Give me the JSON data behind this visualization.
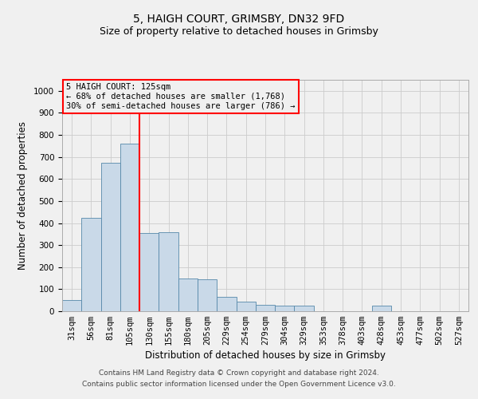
{
  "title1": "5, HAIGH COURT, GRIMSBY, DN32 9FD",
  "title2": "Size of property relative to detached houses in Grimsby",
  "xlabel": "Distribution of detached houses by size in Grimsby",
  "ylabel": "Number of detached properties",
  "footer1": "Contains HM Land Registry data © Crown copyright and database right 2024.",
  "footer2": "Contains public sector information licensed under the Open Government Licence v3.0.",
  "categories": [
    "31sqm",
    "56sqm",
    "81sqm",
    "105sqm",
    "130sqm",
    "155sqm",
    "180sqm",
    "205sqm",
    "229sqm",
    "254sqm",
    "279sqm",
    "304sqm",
    "329sqm",
    "353sqm",
    "378sqm",
    "403sqm",
    "428sqm",
    "453sqm",
    "477sqm",
    "502sqm",
    "527sqm"
  ],
  "values": [
    50,
    425,
    675,
    760,
    355,
    360,
    150,
    145,
    65,
    45,
    30,
    25,
    25,
    0,
    0,
    0,
    25,
    0,
    0,
    0,
    0
  ],
  "bar_color": "#c9d9e8",
  "bar_edge_color": "#5588aa",
  "red_line_index": 4,
  "annotation_text": "5 HAIGH COURT: 125sqm\n← 68% of detached houses are smaller (1,768)\n30% of semi-detached houses are larger (786) →",
  "ylim": [
    0,
    1050
  ],
  "yticks": [
    0,
    100,
    200,
    300,
    400,
    500,
    600,
    700,
    800,
    900,
    1000
  ],
  "background_color": "#f0f0f0",
  "grid_color": "#cccccc",
  "title1_fontsize": 10,
  "title2_fontsize": 9,
  "xlabel_fontsize": 8.5,
  "ylabel_fontsize": 8.5,
  "tick_fontsize": 7.5,
  "footer_fontsize": 6.5
}
